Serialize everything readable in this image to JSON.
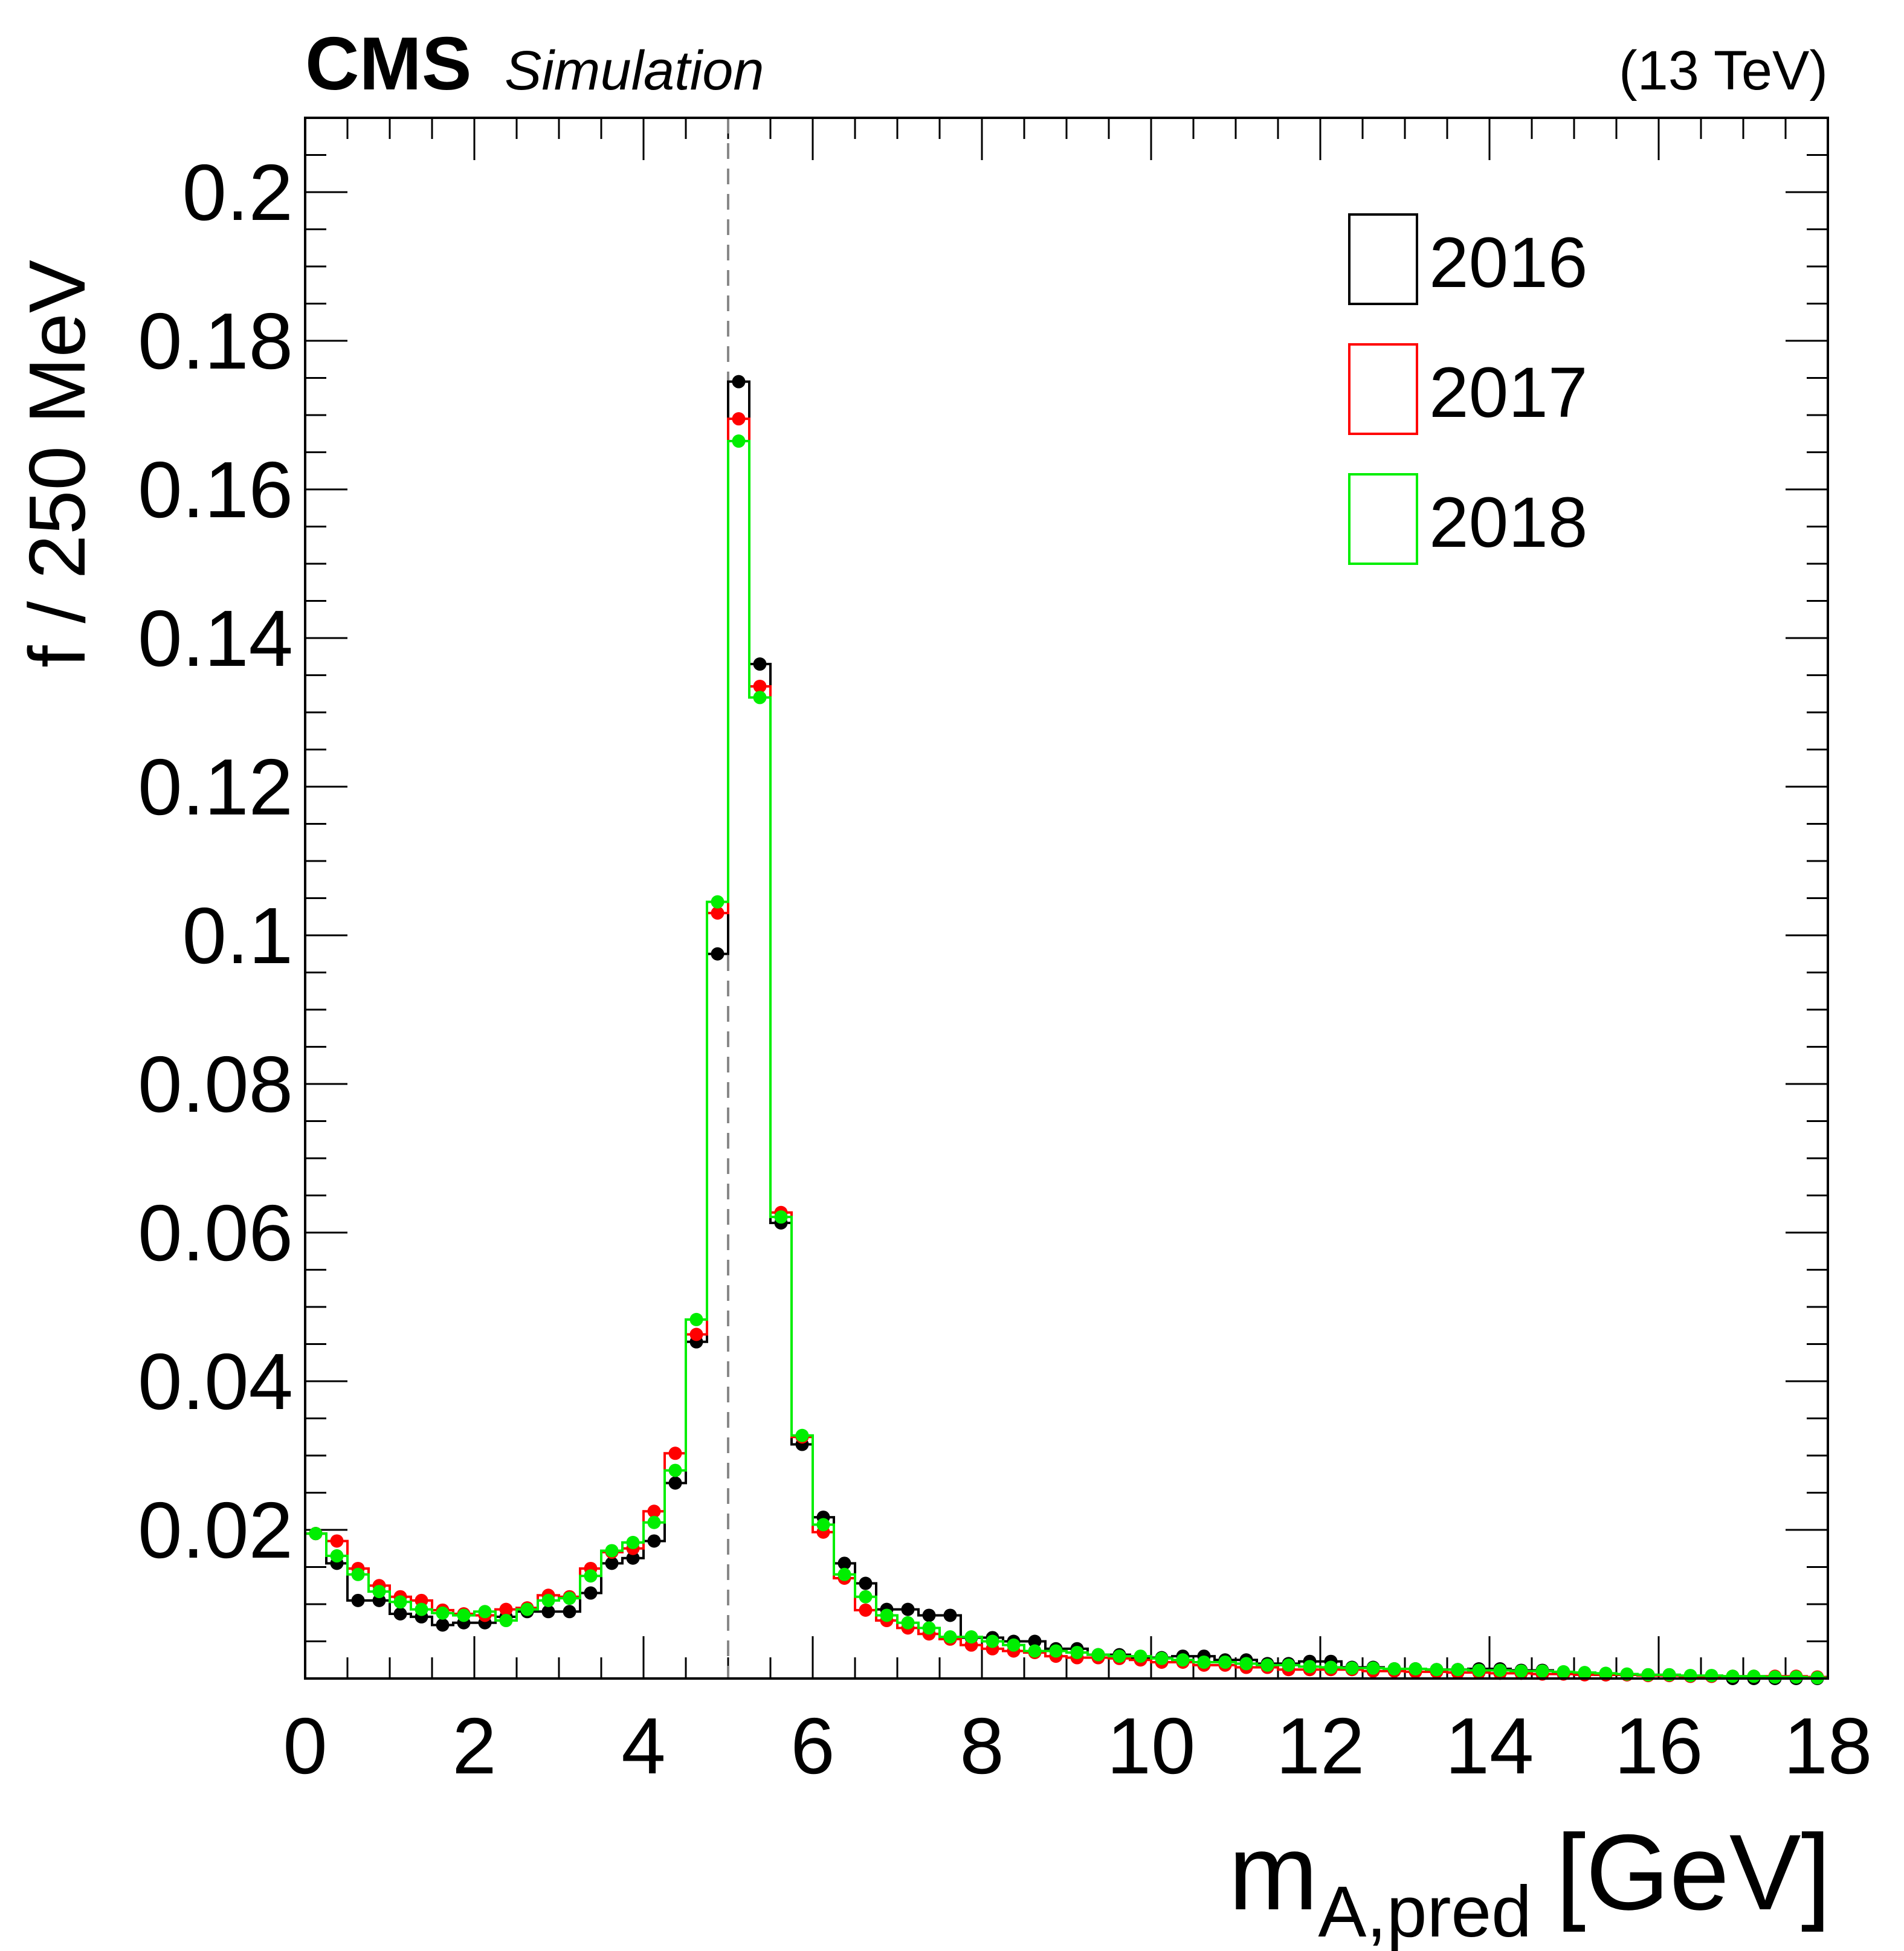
{
  "header": {
    "experiment": "CMS",
    "qualifier": "Simulation",
    "energy": "(13 TeV)"
  },
  "chart_data": {
    "type": "line",
    "xlabel_main": "m",
    "xlabel_sub": "A,pred",
    "xlabel_unit": "[GeV]",
    "ylabel": "f / 250 MeV",
    "xlim": [
      0,
      18
    ],
    "ylim": [
      0,
      0.21
    ],
    "x_ticks": [
      "0",
      "2",
      "4",
      "6",
      "8",
      "10",
      "12",
      "14",
      "16",
      "18"
    ],
    "y_ticks": [
      "0.02",
      "0.04",
      "0.06",
      "0.08",
      "0.1",
      "0.12",
      "0.14",
      "0.16",
      "0.18",
      "0.2"
    ],
    "grid": false,
    "legend_position": "top-right",
    "reference_line_x": 5,
    "bin_width": 0.25,
    "x_bin_centers": [
      0.125,
      0.375,
      0.625,
      0.875,
      1.125,
      1.375,
      1.625,
      1.875,
      2.125,
      2.375,
      2.625,
      2.875,
      3.125,
      3.375,
      3.625,
      3.875,
      4.125,
      4.375,
      4.625,
      4.875,
      5.125,
      5.375,
      5.625,
      5.875,
      6.125,
      6.375,
      6.625,
      6.875,
      7.125,
      7.375,
      7.625,
      7.875,
      8.125,
      8.375,
      8.625,
      8.875,
      9.125,
      9.375,
      9.625,
      9.875,
      10.125,
      10.375,
      10.625,
      10.875,
      11.125,
      11.375,
      11.625,
      11.875,
      12.125,
      12.375,
      12.625,
      12.875,
      13.125,
      13.375,
      13.625,
      13.875,
      14.125,
      14.375,
      14.625,
      14.875,
      15.125,
      15.375,
      15.625,
      15.875,
      16.125,
      16.375,
      16.625,
      16.875,
      17.125,
      17.375,
      17.625,
      17.875
    ],
    "series": [
      {
        "name": "2016",
        "color": "#000000",
        "values": [
          0.0195,
          0.0155,
          0.0105,
          0.0105,
          0.0087,
          0.0083,
          0.0072,
          0.0075,
          0.0075,
          0.0083,
          0.009,
          0.009,
          0.009,
          0.0115,
          0.0155,
          0.0162,
          0.0185,
          0.0263,
          0.0453,
          0.0975,
          0.1745,
          0.1365,
          0.0613,
          0.0315,
          0.0217,
          0.0155,
          0.0128,
          0.0093,
          0.0093,
          0.0085,
          0.0085,
          0.0055,
          0.0055,
          0.005,
          0.005,
          0.004,
          0.004,
          0.0032,
          0.0032,
          0.0028,
          0.0028,
          0.003,
          0.003,
          0.0025,
          0.0025,
          0.002,
          0.002,
          0.0023,
          0.0023,
          0.0015,
          0.0015,
          0.0013,
          0.0013,
          0.0012,
          0.0012,
          0.0013,
          0.0013,
          0.0011,
          0.0011,
          0.0007,
          0.0007,
          0.0005,
          0.0005,
          0.0005,
          0.0005,
          0.0003,
          0.0003,
          0.0,
          0.0,
          0.0,
          0.0,
          0.0
        ]
      },
      {
        "name": "2017",
        "color": "#ff0000",
        "values": [
          0.0195,
          0.0185,
          0.0148,
          0.0125,
          0.011,
          0.0105,
          0.0092,
          0.0087,
          0.0085,
          0.0093,
          0.0095,
          0.0112,
          0.011,
          0.0148,
          0.017,
          0.0175,
          0.0225,
          0.0303,
          0.0463,
          0.103,
          0.1695,
          0.1335,
          0.0627,
          0.0325,
          0.0197,
          0.0135,
          0.0092,
          0.0078,
          0.0068,
          0.006,
          0.0053,
          0.0045,
          0.004,
          0.0037,
          0.0035,
          0.003,
          0.0028,
          0.0028,
          0.0027,
          0.0025,
          0.0022,
          0.0022,
          0.0018,
          0.0018,
          0.0015,
          0.0015,
          0.0012,
          0.0012,
          0.0012,
          0.0012,
          0.001,
          0.001,
          0.0009,
          0.0009,
          0.0008,
          0.0008,
          0.0007,
          0.0007,
          0.0006,
          0.0006,
          0.0005,
          0.0005,
          0.0005,
          0.0004,
          0.0004,
          0.0003,
          0.0003,
          0.0003,
          0.0003,
          0.0003,
          0.0003,
          0.0002
        ]
      },
      {
        "name": "2018",
        "color": "#00ee00",
        "values": [
          0.0195,
          0.0165,
          0.014,
          0.0117,
          0.0103,
          0.0093,
          0.0088,
          0.0085,
          0.009,
          0.0078,
          0.0093,
          0.0105,
          0.0108,
          0.0138,
          0.0172,
          0.0183,
          0.021,
          0.028,
          0.0483,
          0.1045,
          0.1665,
          0.132,
          0.0621,
          0.0327,
          0.0207,
          0.014,
          0.011,
          0.0085,
          0.0075,
          0.0068,
          0.0056,
          0.0056,
          0.005,
          0.0045,
          0.0037,
          0.0037,
          0.0035,
          0.0032,
          0.003,
          0.003,
          0.0027,
          0.0025,
          0.0022,
          0.0022,
          0.002,
          0.0018,
          0.0018,
          0.0016,
          0.0015,
          0.0014,
          0.0014,
          0.0013,
          0.0013,
          0.0012,
          0.0012,
          0.0011,
          0.0011,
          0.001,
          0.001,
          0.0009,
          0.0008,
          0.0007,
          0.0006,
          0.0005,
          0.0005,
          0.0004,
          0.0004,
          0.0003,
          0.0003,
          0.0002,
          0.0002,
          0.0001
        ]
      }
    ]
  }
}
